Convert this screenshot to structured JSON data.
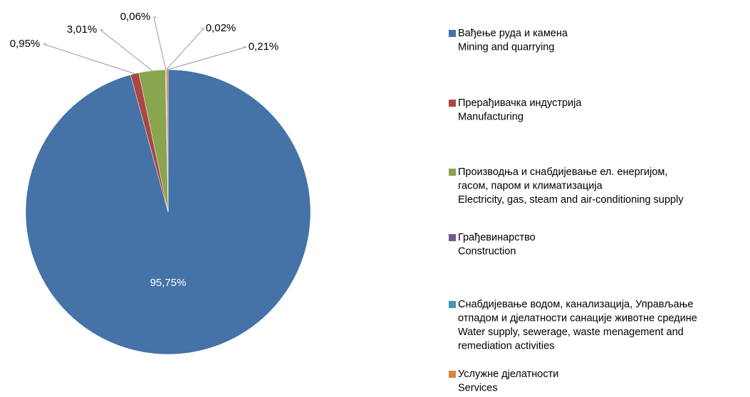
{
  "chart_data": {
    "type": "pie",
    "labels": [
      [
        "Вађење руда и камена",
        "Mining and quarrying"
      ],
      [
        "Прерађивачка индустрија",
        "Manufacturing"
      ],
      [
        "Производња и снабдијевање ел. енергијом,",
        "гасом, паром и климатизација",
        "Electricity, gas, steam and air-conditioning supply"
      ],
      [
        "Грађевинарство",
        "Construction"
      ],
      [
        "Снабдијевање водом, канализација, Управљање",
        "отпадом и дјелатности санације животне средине",
        "Water supply, sewerage, waste menagement and",
        "remediation activities"
      ],
      [
        "Услужне дјелатности",
        "Services"
      ]
    ],
    "values": [
      95.75,
      0.95,
      3.01,
      0.06,
      0.02,
      0.21
    ],
    "value_labels": [
      "95,75%",
      "0,95%",
      "3,01%",
      "0,06%",
      "0,02%",
      "0,21%"
    ],
    "colors": [
      "#4572a7",
      "#aa4643",
      "#89a54e",
      "#71588f",
      "#4198af",
      "#db843d"
    ]
  }
}
